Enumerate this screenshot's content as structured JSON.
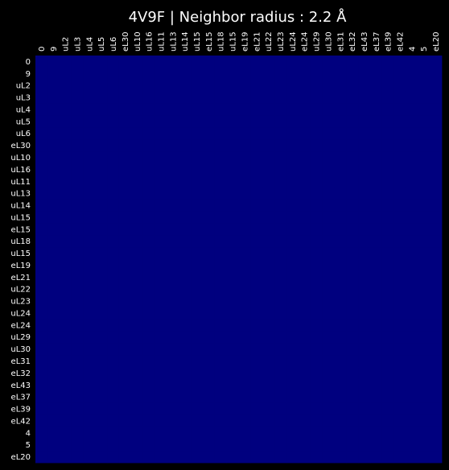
{
  "chart_data": {
    "type": "heatmap",
    "title": "4V9F | Neighbor radius : 2.2 Å",
    "x_categories": [
      "0",
      "9",
      "uL2",
      "uL3",
      "uL4",
      "uL5",
      "uL6",
      "eL30",
      "uL10",
      "uL16",
      "uL11",
      "uL13",
      "uL14",
      "uL15",
      "eL15",
      "uL18",
      "uL15",
      "eL19",
      "eL21",
      "uL22",
      "uL23",
      "uL24",
      "eL24",
      "uL29",
      "uL30",
      "eL31",
      "eL32",
      "eL43",
      "eL37",
      "eL39",
      "eL42",
      "4",
      "5",
      "eL20"
    ],
    "y_categories": [
      "0",
      "9",
      "uL2",
      "uL3",
      "uL4",
      "uL5",
      "uL6",
      "eL30",
      "uL10",
      "uL16",
      "uL11",
      "uL13",
      "uL14",
      "uL15",
      "eL15",
      "uL18",
      "uL15",
      "eL19",
      "eL21",
      "uL22",
      "uL23",
      "uL24",
      "eL24",
      "uL29",
      "uL30",
      "eL31",
      "eL32",
      "eL43",
      "eL37",
      "eL39",
      "eL42",
      "4",
      "5",
      "eL20"
    ],
    "fill_value": 0,
    "cell_color": "#00007f",
    "x_ticks_position": "top",
    "grid": false,
    "colors": {
      "background": "#000000",
      "text": "#ffffff"
    }
  }
}
